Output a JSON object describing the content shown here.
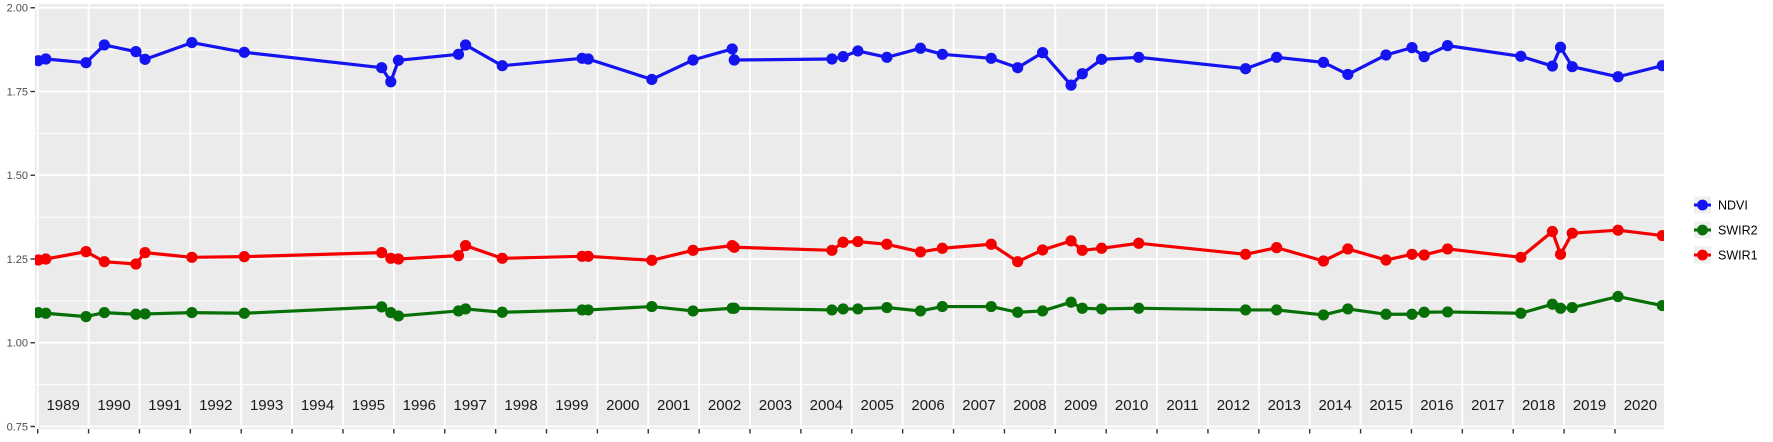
{
  "chart_data": {
    "type": "line",
    "title": "",
    "xlabel": "",
    "ylabel": "",
    "grid": "on",
    "legend_position": "right",
    "xlim": [
      1988.95,
      2021.0
    ],
    "ylim": [
      0.75,
      2.0
    ],
    "x": [
      1989.01,
      1989.16,
      1989.95,
      1990.31,
      1990.93,
      1991.11,
      1992.03,
      1993.06,
      1995.76,
      1995.94,
      1996.09,
      1997.27,
      1997.41,
      1998.13,
      1999.7,
      1999.82,
      2001.07,
      2001.88,
      2002.65,
      2002.69,
      2004.61,
      2004.83,
      2005.12,
      2005.69,
      2006.35,
      2006.78,
      2007.74,
      2008.26,
      2008.75,
      2009.31,
      2009.53,
      2009.91,
      2010.64,
      2012.74,
      2013.35,
      2014.27,
      2014.75,
      2015.5,
      2016.01,
      2016.25,
      2016.71,
      2018.15,
      2018.77,
      2018.93,
      2019.16,
      2020.06,
      2020.93
    ],
    "series": [
      {
        "name": "NDVI",
        "color": "#1414f0",
        "values": [
          1.842,
          1.847,
          1.836,
          1.889,
          1.869,
          1.846,
          1.896,
          1.867,
          1.821,
          1.779,
          1.843,
          1.861,
          1.889,
          1.827,
          1.849,
          1.847,
          1.786,
          1.844,
          1.877,
          1.844,
          1.847,
          1.854,
          1.871,
          1.852,
          1.879,
          1.861,
          1.849,
          1.821,
          1.866,
          1.769,
          1.803,
          1.846,
          1.852,
          1.818,
          1.852,
          1.837,
          1.801,
          1.859,
          1.881,
          1.854,
          1.887,
          1.855,
          1.826,
          1.882,
          1.824,
          1.794,
          1.827
        ]
      },
      {
        "name": "SWIR2",
        "color": "#067006",
        "values": [
          1.09,
          1.088,
          1.078,
          1.09,
          1.085,
          1.086,
          1.09,
          1.088,
          1.107,
          1.09,
          1.08,
          1.095,
          1.101,
          1.091,
          1.098,
          1.098,
          1.108,
          1.095,
          1.103,
          1.103,
          1.098,
          1.101,
          1.101,
          1.105,
          1.095,
          1.108,
          1.108,
          1.091,
          1.095,
          1.121,
          1.103,
          1.101,
          1.103,
          1.098,
          1.098,
          1.083,
          1.101,
          1.085,
          1.085,
          1.091,
          1.092,
          1.088,
          1.115,
          1.103,
          1.105,
          1.138,
          1.111
        ]
      },
      {
        "name": "SWIR1",
        "color": "#f40000",
        "values": [
          1.247,
          1.25,
          1.272,
          1.242,
          1.235,
          1.269,
          1.255,
          1.257,
          1.269,
          1.252,
          1.25,
          1.26,
          1.29,
          1.252,
          1.258,
          1.258,
          1.246,
          1.276,
          1.29,
          1.285,
          1.276,
          1.3,
          1.302,
          1.294,
          1.271,
          1.282,
          1.294,
          1.242,
          1.277,
          1.304,
          1.276,
          1.282,
          1.297,
          1.264,
          1.284,
          1.244,
          1.28,
          1.247,
          1.264,
          1.262,
          1.28,
          1.255,
          1.332,
          1.264,
          1.327,
          1.336,
          1.32
        ]
      }
    ],
    "y_tick_labels": [
      "2.00",
      "1.75",
      "1.50",
      "1.25",
      "1.00",
      "0.75"
    ],
    "y_tick_values": [
      2.0,
      1.75,
      1.5,
      1.25,
      1.0,
      0.75
    ],
    "y_minor_values": [
      1.875,
      1.625,
      1.375,
      1.125,
      0.875
    ],
    "x_tick_years": [
      1989,
      1990,
      1991,
      1992,
      1993,
      1994,
      1995,
      1996,
      1997,
      1998,
      1999,
      2000,
      2001,
      2002,
      2003,
      2004,
      2005,
      2006,
      2007,
      2008,
      2009,
      2010,
      2011,
      2012,
      2013,
      2014,
      2015,
      2016,
      2017,
      2018,
      2019,
      2020
    ],
    "x_tick_labels": [
      "1989",
      "1990",
      "1991",
      "1992",
      "1993",
      "1994",
      "1995",
      "1996",
      "1997",
      "1998",
      "1999",
      "2000",
      "2001",
      "2002",
      "2003",
      "2004",
      "2005",
      "2006",
      "2007",
      "2008",
      "2009",
      "2010",
      "2011",
      "2012",
      "2013",
      "2014",
      "2015",
      "2016",
      "2017",
      "2018",
      "2019",
      "2020"
    ]
  },
  "legend": {
    "items": [
      {
        "label": "NDVI",
        "color": "#1414f0"
      },
      {
        "label": "SWIR2",
        "color": "#067006"
      },
      {
        "label": "SWIR1",
        "color": "#f40000"
      }
    ]
  },
  "styles": {
    "panel_bg": "#ebebeb",
    "grid_color": "#ffffff",
    "tick_color": "#333333",
    "y_label_color": "#4d4d4d",
    "x_label_color": "#1a1a1a",
    "legend_key_bg": "#efefef",
    "outer_bg": "#ffffff"
  }
}
